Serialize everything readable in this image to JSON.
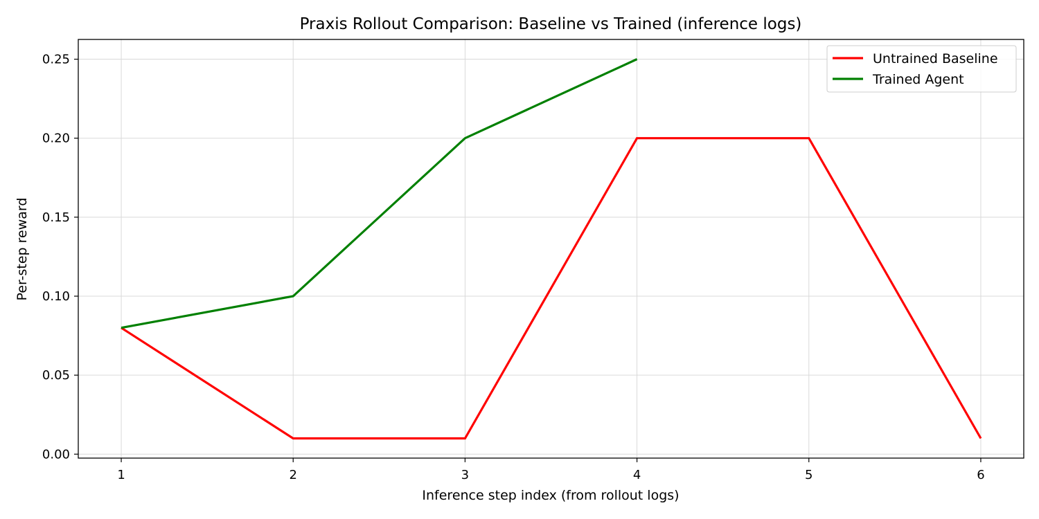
{
  "chart_data": {
    "type": "line",
    "title": "Praxis Rollout Comparison: Baseline vs Trained (inference logs)",
    "xlabel": "Inference step index (from rollout logs)",
    "ylabel": "Per-step reward",
    "xlim": [
      0.75,
      6.25
    ],
    "ylim": [
      -0.0025,
      0.2625
    ],
    "xticks": [
      1,
      2,
      3,
      4,
      5,
      6
    ],
    "yticks": [
      0.0,
      0.05,
      0.1,
      0.15,
      0.2,
      0.25
    ],
    "ytick_labels": [
      "0.00",
      "0.05",
      "0.10",
      "0.15",
      "0.20",
      "0.25"
    ],
    "grid": true,
    "legend_position": "top-right",
    "series": [
      {
        "name": "Untrained Baseline",
        "color": "#ff0000",
        "x": [
          1,
          2,
          3,
          4,
          5,
          6
        ],
        "y": [
          0.08,
          0.01,
          0.01,
          0.2,
          0.2,
          0.01
        ]
      },
      {
        "name": "Trained Agent",
        "color": "#008000",
        "x": [
          1,
          2,
          3,
          4
        ],
        "y": [
          0.08,
          0.1,
          0.2,
          0.25
        ]
      }
    ]
  }
}
